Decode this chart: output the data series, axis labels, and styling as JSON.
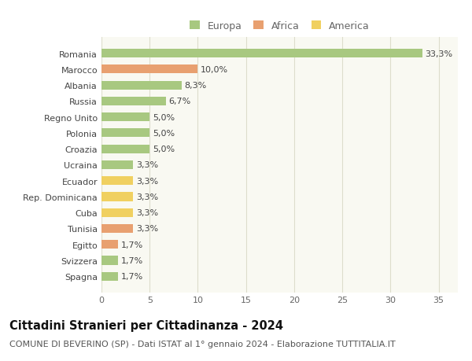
{
  "categories": [
    "Spagna",
    "Svizzera",
    "Egitto",
    "Tunisia",
    "Cuba",
    "Rep. Dominicana",
    "Ecuador",
    "Ucraina",
    "Croazia",
    "Polonia",
    "Regno Unito",
    "Russia",
    "Albania",
    "Marocco",
    "Romania"
  ],
  "values": [
    1.7,
    1.7,
    1.7,
    3.3,
    3.3,
    3.3,
    3.3,
    3.3,
    5.0,
    5.0,
    5.0,
    6.7,
    8.3,
    10.0,
    33.3
  ],
  "continents": [
    "Europa",
    "Europa",
    "Africa",
    "Africa",
    "America",
    "America",
    "America",
    "Europa",
    "Europa",
    "Europa",
    "Europa",
    "Europa",
    "Europa",
    "Africa",
    "Europa"
  ],
  "labels": [
    "1,7%",
    "1,7%",
    "1,7%",
    "3,3%",
    "3,3%",
    "3,3%",
    "3,3%",
    "3,3%",
    "5,0%",
    "5,0%",
    "5,0%",
    "6,7%",
    "8,3%",
    "10,0%",
    "33,3%"
  ],
  "continent_colors": {
    "Europa": "#a8c880",
    "Africa": "#e8a070",
    "America": "#f0d060"
  },
  "legend_entries": [
    "Europa",
    "Africa",
    "America"
  ],
  "xlim": [
    0,
    37
  ],
  "xticks": [
    0,
    5,
    10,
    15,
    20,
    25,
    30,
    35
  ],
  "title": "Cittadini Stranieri per Cittadinanza - 2024",
  "subtitle": "COMUNE DI BEVERINO (SP) - Dati ISTAT al 1° gennaio 2024 - Elaborazione TUTTITALIA.IT",
  "background_color": "#ffffff",
  "plot_bg_color": "#f9f9f2",
  "grid_color": "#ddddcc",
  "bar_height": 0.55,
  "label_fontsize": 8,
  "title_fontsize": 10.5,
  "subtitle_fontsize": 8,
  "legend_fontsize": 9,
  "ytick_fontsize": 8
}
